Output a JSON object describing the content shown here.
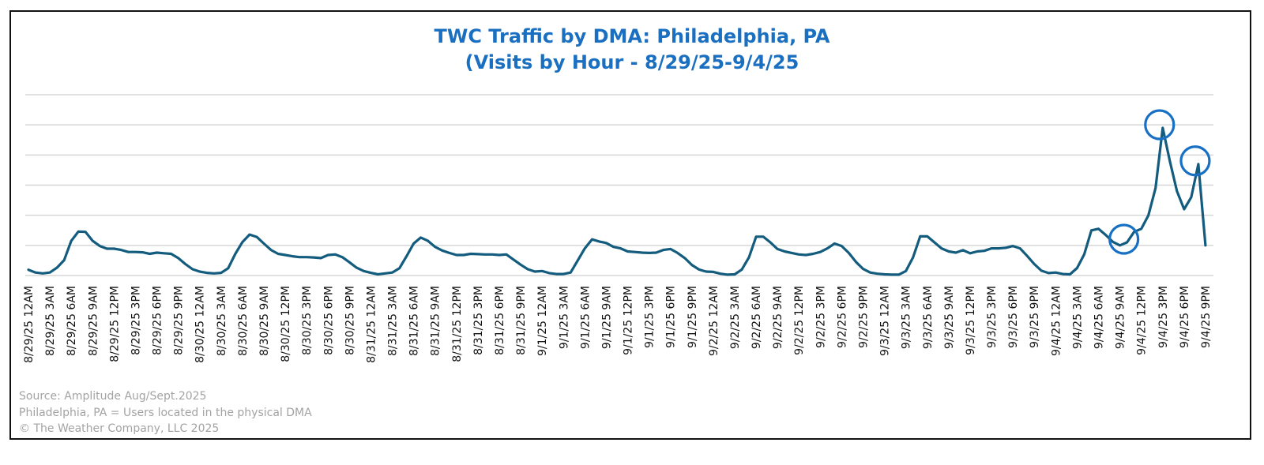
{
  "chart_data": {
    "type": "line",
    "title_line1": "TWC Traffic by DMA: Philadelphia, PA",
    "title_line2": "(Visits by Hour - 8/29/25-9/4/25",
    "xlabel": "",
    "ylabel": "",
    "y_tick_labels_shown": false,
    "ylim": [
      0,
      6
    ],
    "grid": "horizontal",
    "interval": "hourly",
    "x_tick_labels": [
      "8/29/25 12AM",
      "8/29/25 3AM",
      "8/29/25 6AM",
      "8/29/25 9AM",
      "8/29/25 12PM",
      "8/29/25 3PM",
      "8/29/25 6PM",
      "8/29/25 9PM",
      "8/30/25 12AM",
      "8/30/25 3AM",
      "8/30/25 6AM",
      "8/30/25 9AM",
      "8/30/25 12PM",
      "8/30/25 3PM",
      "8/30/25 6PM",
      "8/30/25 9PM",
      "8/31/25 12AM",
      "8/31/25 3AM",
      "8/31/25 6AM",
      "8/31/25 9AM",
      "8/31/25 12PM",
      "8/31/25 3PM",
      "8/31/25 6PM",
      "8/31/25 9PM",
      "9/1/25 12AM",
      "9/1/25 3AM",
      "9/1/25 6AM",
      "9/1/25 9AM",
      "9/1/25 12PM",
      "9/1/25 3PM",
      "9/1/25 6PM",
      "9/1/25 9PM",
      "9/2/25 12AM",
      "9/2/25 3AM",
      "9/2/25 6AM",
      "9/2/25 9AM",
      "9/2/25 12PM",
      "9/2/25 3PM",
      "9/2/25 6PM",
      "9/2/25 9PM",
      "9/3/25 12AM",
      "9/3/25 3AM",
      "9/3/25 6AM",
      "9/3/25 9AM",
      "9/3/25 12PM",
      "9/3/25 3PM",
      "9/3/25 6PM",
      "9/3/25 9PM",
      "9/4/25 12AM",
      "9/4/25 3AM",
      "9/4/25 6AM",
      "9/4/25 9AM",
      "9/4/25 12PM",
      "9/4/25 3PM",
      "9/4/25 6PM",
      "9/4/25 9PM"
    ],
    "values": [
      0.19,
      0.1,
      0.07,
      0.1,
      0.26,
      0.51,
      1.15,
      1.46,
      1.45,
      1.15,
      0.98,
      0.89,
      0.89,
      0.85,
      0.78,
      0.78,
      0.77,
      0.72,
      0.76,
      0.74,
      0.72,
      0.58,
      0.38,
      0.21,
      0.13,
      0.09,
      0.07,
      0.09,
      0.24,
      0.72,
      1.11,
      1.36,
      1.28,
      1.06,
      0.85,
      0.72,
      0.68,
      0.64,
      0.61,
      0.61,
      0.6,
      0.58,
      0.68,
      0.7,
      0.61,
      0.44,
      0.26,
      0.15,
      0.09,
      0.04,
      0.07,
      0.1,
      0.24,
      0.64,
      1.06,
      1.26,
      1.15,
      0.95,
      0.83,
      0.75,
      0.68,
      0.68,
      0.72,
      0.71,
      0.7,
      0.7,
      0.68,
      0.7,
      0.53,
      0.36,
      0.21,
      0.13,
      0.15,
      0.08,
      0.05,
      0.05,
      0.1,
      0.5,
      0.9,
      1.2,
      1.13,
      1.08,
      0.95,
      0.9,
      0.8,
      0.78,
      0.76,
      0.75,
      0.76,
      0.85,
      0.88,
      0.75,
      0.58,
      0.35,
      0.2,
      0.13,
      0.12,
      0.06,
      0.03,
      0.04,
      0.2,
      0.6,
      1.29,
      1.29,
      1.1,
      0.88,
      0.8,
      0.75,
      0.7,
      0.68,
      0.72,
      0.78,
      0.9,
      1.06,
      0.98,
      0.75,
      0.45,
      0.22,
      0.1,
      0.06,
      0.04,
      0.03,
      0.03,
      0.15,
      0.6,
      1.3,
      1.3,
      1.1,
      0.9,
      0.8,
      0.76,
      0.84,
      0.74,
      0.8,
      0.82,
      0.9,
      0.9,
      0.92,
      0.98,
      0.9,
      0.65,
      0.38,
      0.16,
      0.08,
      0.1,
      0.05,
      0.04,
      0.25,
      0.7,
      1.5,
      1.55,
      1.35,
      1.12,
      1.0,
      1.1,
      1.45,
      1.55,
      2.0,
      2.9,
      4.9,
      3.8,
      2.8,
      2.2,
      2.6,
      3.7,
      1.0
    ],
    "highlighted_hour_indices": [
      154,
      159,
      164
    ],
    "line_color": "#135c7e",
    "highlight_color": "#1870c4",
    "grid_color": "#d6d6d6"
  },
  "footer": {
    "source": "Source: Amplitude Aug/Sept.2025",
    "note": "Philadelphia, PA = Users located in the physical DMA",
    "copyright": "© The Weather Company, LLC 2025"
  },
  "colors": {
    "title": "#1a6fc1",
    "footer_text": "#a3a3a3",
    "border": "#111111"
  }
}
